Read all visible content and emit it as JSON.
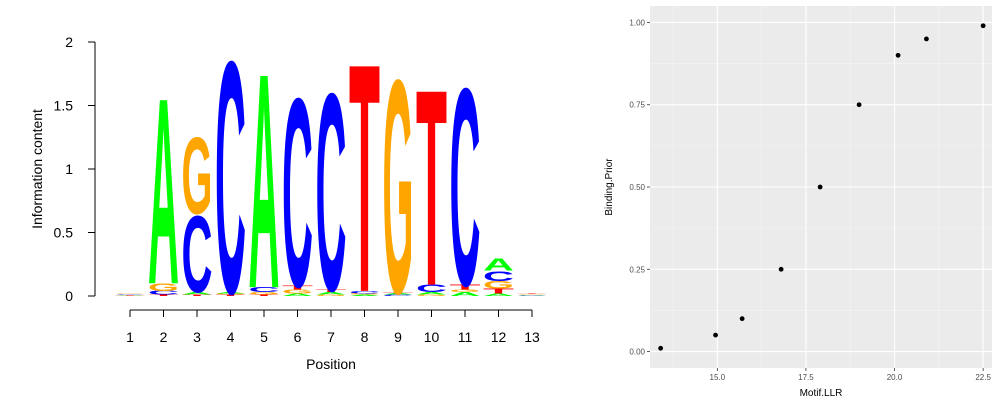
{
  "chart_data": [
    {
      "type": "sequence-logo",
      "xlabel": "Position",
      "ylabel": "Information content",
      "ylim": [
        0,
        2
      ],
      "yticks": [
        "0",
        "0.5",
        "1",
        "1.5",
        "2"
      ],
      "xticks": [
        "1",
        "2",
        "3",
        "4",
        "5",
        "6",
        "7",
        "8",
        "9",
        "10",
        "11",
        "12",
        "13"
      ],
      "colors": {
        "A": "#00ff00",
        "C": "#0000ff",
        "G": "#ffa500",
        "T": "#ff0000"
      },
      "positions": [
        {
          "pos": "1",
          "stack": [
            [
              "A",
              0.005
            ],
            [
              "T",
              0.005
            ],
            [
              "C",
              0.005
            ],
            [
              "G",
              0.005
            ]
          ]
        },
        {
          "pos": "2",
          "stack": [
            [
              "T",
              0.01
            ],
            [
              "C",
              0.03
            ],
            [
              "G",
              0.06
            ],
            [
              "A",
              1.5
            ]
          ]
        },
        {
          "pos": "3",
          "stack": [
            [
              "T",
              0.01
            ],
            [
              "A",
              0.02
            ],
            [
              "C",
              0.62
            ],
            [
              "G",
              0.62
            ]
          ]
        },
        {
          "pos": "4",
          "stack": [
            [
              "T",
              0.01
            ],
            [
              "G",
              0.01
            ],
            [
              "A",
              0.01
            ],
            [
              "C",
              1.87
            ]
          ]
        },
        {
          "pos": "5",
          "stack": [
            [
              "T",
              0.01
            ],
            [
              "G",
              0.02
            ],
            [
              "C",
              0.04
            ],
            [
              "A",
              1.73
            ]
          ]
        },
        {
          "pos": "6",
          "stack": [
            [
              "A",
              0.02
            ],
            [
              "G",
              0.03
            ],
            [
              "T",
              0.03
            ],
            [
              "C",
              1.52
            ]
          ]
        },
        {
          "pos": "7",
          "stack": [
            [
              "G",
              0.01
            ],
            [
              "A",
              0.02
            ],
            [
              "T",
              0.02
            ],
            [
              "C",
              1.59
            ]
          ]
        },
        {
          "pos": "8",
          "stack": [
            [
              "A",
              0.01
            ],
            [
              "G",
              0.01
            ],
            [
              "C",
              0.02
            ],
            [
              "T",
              1.84
            ]
          ]
        },
        {
          "pos": "9",
          "stack": [
            [
              "C",
              0.01
            ],
            [
              "A",
              0.01
            ],
            [
              "T",
              0.01
            ],
            [
              "G",
              1.72
            ]
          ]
        },
        {
          "pos": "10",
          "stack": [
            [
              "G",
              0.01
            ],
            [
              "A",
              0.02
            ],
            [
              "C",
              0.06
            ],
            [
              "T",
              1.58
            ]
          ]
        },
        {
          "pos": "11",
          "stack": [
            [
              "A",
              0.03
            ],
            [
              "G",
              0.02
            ],
            [
              "T",
              0.04
            ],
            [
              "C",
              1.59
            ]
          ]
        },
        {
          "pos": "12",
          "stack": [
            [
              "A",
              0.02
            ],
            [
              "T",
              0.04
            ],
            [
              "G",
              0.06
            ],
            [
              "C",
              0.08
            ],
            [
              "A",
              0.1
            ]
          ]
        },
        {
          "pos": "13",
          "stack": [
            [
              "A",
              0.005
            ],
            [
              "C",
              0.005
            ],
            [
              "G",
              0.005
            ],
            [
              "T",
              0.005
            ]
          ]
        }
      ]
    },
    {
      "type": "scatter",
      "xlabel": "Motif.LLR",
      "ylabel": "Binding.Prior",
      "xlim": [
        13.1,
        22.75
      ],
      "ylim": [
        -0.05,
        1.05
      ],
      "xticks": [
        15.0,
        17.5,
        20.0,
        22.5
      ],
      "xtick_labels": [
        "15.0",
        "17.5",
        "20.0",
        "22.5"
      ],
      "yticks": [
        0,
        0.25,
        0.5,
        0.75,
        1.0
      ],
      "ytick_labels": [
        "0.00",
        "0.25",
        "0.50",
        "0.75",
        "1.00"
      ],
      "grid": true,
      "background": "#ebebeb",
      "points": [
        {
          "x": 13.4,
          "y": 0.01
        },
        {
          "x": 14.95,
          "y": 0.05
        },
        {
          "x": 15.7,
          "y": 0.1
        },
        {
          "x": 16.8,
          "y": 0.25
        },
        {
          "x": 17.9,
          "y": 0.5
        },
        {
          "x": 19.0,
          "y": 0.75
        },
        {
          "x": 20.1,
          "y": 0.9
        },
        {
          "x": 20.9,
          "y": 0.95
        },
        {
          "x": 22.5,
          "y": 0.99
        }
      ]
    }
  ]
}
